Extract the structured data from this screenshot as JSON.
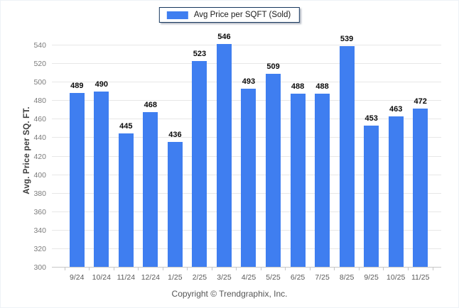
{
  "legend": {
    "label": "Avg Price per SQFT (Sold)",
    "swatch_color": "#3f7ef0",
    "border_color": "#17375e"
  },
  "footer": "Copyright © Trendgraphix, Inc.",
  "chart_data": {
    "type": "bar",
    "title": "",
    "xlabel": "",
    "ylabel": "Avg. Price per SQ. FT.",
    "categories": [
      "9/24",
      "10/24",
      "11/24",
      "12/24",
      "1/25",
      "2/25",
      "3/25",
      "4/25",
      "5/25",
      "6/25",
      "7/25",
      "8/25",
      "9/25",
      "10/25",
      "11/25"
    ],
    "values": [
      489,
      490,
      445,
      468,
      436,
      523,
      546,
      493,
      509,
      488,
      488,
      539,
      453,
      463,
      472
    ],
    "series": [
      {
        "name": "Avg Price per SQFT (Sold)",
        "values": [
          489,
          490,
          445,
          468,
          436,
          523,
          546,
          493,
          509,
          488,
          488,
          539,
          453,
          463,
          472
        ]
      }
    ],
    "ylim": [
      300,
      540
    ],
    "ytick_step": 20,
    "grid": true,
    "legend_position": "top",
    "bar_color": "#3f7ef0",
    "value_labels_shown": true
  }
}
